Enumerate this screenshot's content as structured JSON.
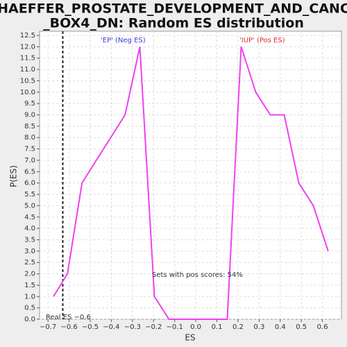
{
  "chart_data": {
    "type": "line",
    "title": [
      "SCHAEFFER_PROSTATE_DEVELOPMENT_AND_CANCER",
      "_BOX4_DN: Random ES distribution"
    ],
    "x_label": "ES",
    "y_label": "P(ES)",
    "x": [
      -0.674,
      -0.608,
      -0.539,
      -0.335,
      -0.265,
      -0.196,
      -0.127,
      0.149,
      0.215,
      0.284,
      0.353,
      0.419,
      0.488,
      0.557,
      0.627
    ],
    "series": [
      {
        "color": "#f040f0",
        "values": [
          1,
          2,
          6,
          9,
          12,
          1,
          0,
          0,
          12,
          10,
          9,
          9,
          6,
          5,
          3
        ]
      }
    ],
    "xlim": [
      -0.74,
      0.69
    ],
    "ylim": [
      0,
      12.5
    ],
    "xticks": [
      {
        "value": -0.7,
        "label": "−0.7"
      },
      {
        "value": -0.6,
        "label": "−0.6"
      },
      {
        "value": -0.5,
        "label": "−0.5"
      },
      {
        "value": -0.4,
        "label": "−0.4"
      },
      {
        "value": -0.3,
        "label": "−0.3"
      },
      {
        "value": -0.2,
        "label": "−0.2"
      },
      {
        "value": -0.1,
        "label": "−0.1"
      },
      {
        "value": 0,
        "label": "0.0"
      },
      0.1,
      0.2,
      0.3,
      0.4,
      0.5,
      0.6
    ],
    "yticks": [
      {
        "value": 0,
        "label": "0.0"
      },
      0.5,
      {
        "value": 1,
        "label": "1.0"
      },
      1.5,
      {
        "value": 2,
        "label": "2.0"
      },
      2.5,
      {
        "value": 3,
        "label": "3.0"
      },
      3.5,
      {
        "value": 4,
        "label": "4.0"
      },
      4.5,
      {
        "value": 5,
        "label": "5.0"
      },
      5.5,
      {
        "value": 6,
        "label": "6.0"
      },
      6.5,
      {
        "value": 7,
        "label": "7.0"
      },
      7.5,
      {
        "value": 8,
        "label": "8.0"
      },
      8.5,
      {
        "value": 9,
        "label": "9.0"
      },
      9.5,
      {
        "value": 10,
        "label": "10.0"
      },
      10.5,
      {
        "value": 11,
        "label": "11.0"
      },
      11.5,
      {
        "value": 12,
        "label": "12.0"
      },
      12.5
    ],
    "grid": true,
    "real_es": {
      "value": -0.63,
      "label": "Real ES −0.6"
    },
    "annotations": {
      "neg": "'EP' (Neg ES)",
      "pos": "'IUP' (Pos ES)",
      "pos_scores": "Sets with pos scores: 54%"
    }
  }
}
